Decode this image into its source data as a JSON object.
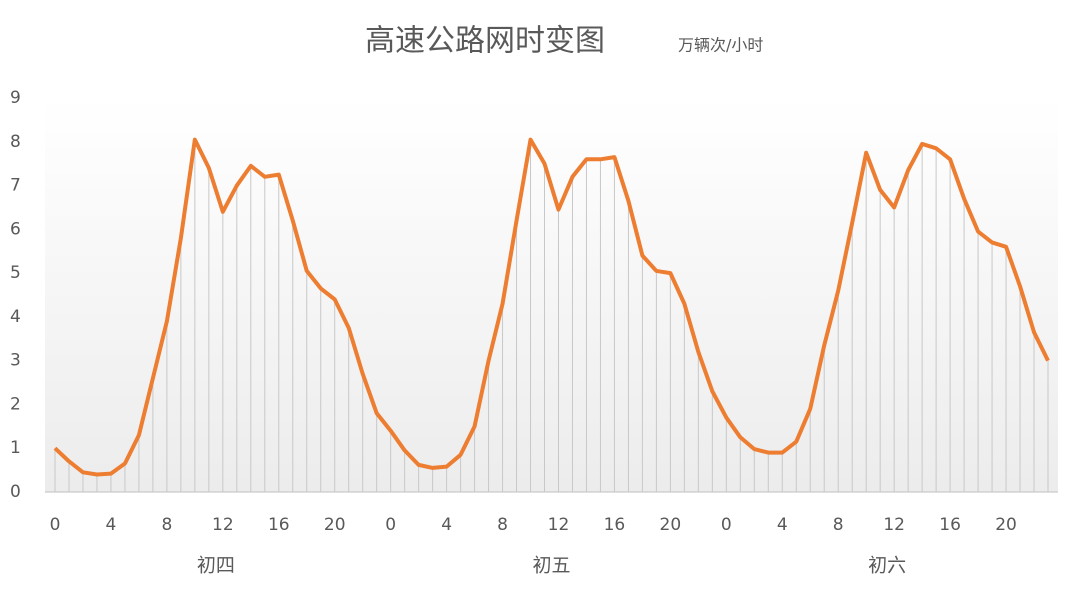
{
  "chart_data": {
    "type": "line",
    "title": "高速公路网时变图",
    "subtitle": "万辆次/小时",
    "categories": [
      "0",
      null,
      null,
      null,
      "4",
      null,
      null,
      null,
      "8",
      null,
      null,
      null,
      "12",
      null,
      null,
      null,
      "16",
      null,
      null,
      null,
      "20",
      null,
      null,
      null,
      "0",
      null,
      null,
      null,
      "4",
      null,
      null,
      null,
      "8",
      null,
      null,
      null,
      "12",
      null,
      null,
      null,
      "16",
      null,
      null,
      null,
      "20",
      null,
      null,
      null,
      "0",
      null,
      null,
      null,
      "4",
      null,
      null,
      null,
      "8",
      null,
      null,
      null,
      "12",
      null,
      null,
      null,
      "16",
      null,
      null,
      null,
      "20",
      null,
      null,
      null
    ],
    "groups": [
      "初四",
      "初五",
      "初六"
    ],
    "series": [
      {
        "color": "#ED7D31",
        "values": [
          1.0,
          0.7,
          0.45,
          0.4,
          0.42,
          0.65,
          1.3,
          2.6,
          3.9,
          5.8,
          8.05,
          7.4,
          6.4,
          7.0,
          7.45,
          7.2,
          7.25,
          6.2,
          5.05,
          4.65,
          4.4,
          3.75,
          2.7,
          1.8,
          1.4,
          0.95,
          0.62,
          0.55,
          0.58,
          0.85,
          1.5,
          3.0,
          4.3,
          6.2,
          8.05,
          7.5,
          6.45,
          7.2,
          7.6,
          7.6,
          7.65,
          6.65,
          5.4,
          5.05,
          5.0,
          4.3,
          3.2,
          2.3,
          1.7,
          1.25,
          0.98,
          0.9,
          0.9,
          1.15,
          1.9,
          3.35,
          4.6,
          6.15,
          7.75,
          6.9,
          6.5,
          7.35,
          7.95,
          7.85,
          7.6,
          6.7,
          5.95,
          5.7,
          5.6,
          4.7,
          3.65,
          3.0
        ]
      }
    ],
    "ylim": [
      0,
      9
    ],
    "yticks": [
      0,
      1,
      2,
      3,
      4,
      5,
      6,
      7,
      8,
      9
    ],
    "drop_lines": true
  }
}
